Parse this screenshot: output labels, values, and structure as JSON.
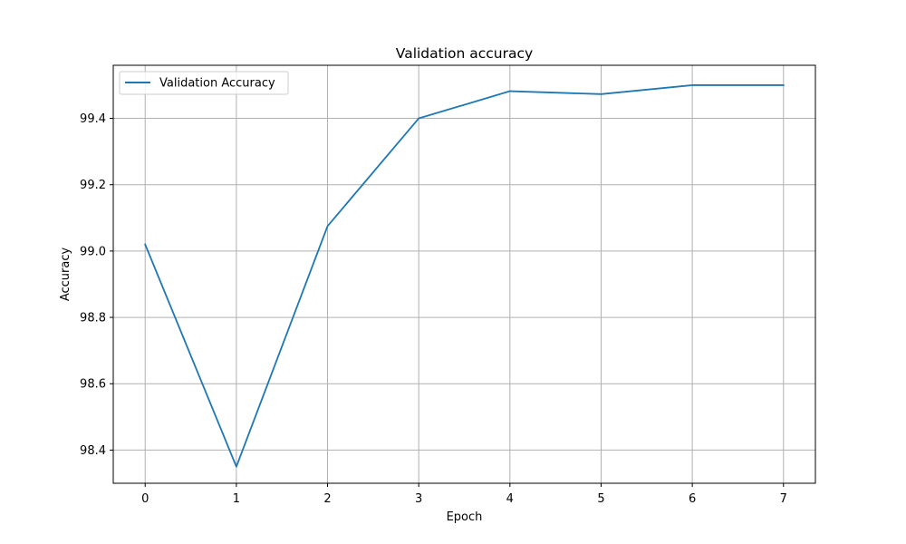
{
  "chart_data": {
    "type": "line",
    "title": "Validation accuracy",
    "xlabel": "Epoch",
    "ylabel": "Accuracy",
    "x": [
      0,
      1,
      2,
      3,
      4,
      5,
      6,
      7
    ],
    "series": [
      {
        "name": "Validation Accuracy",
        "values": [
          99.02,
          98.35,
          99.075,
          99.4,
          99.482,
          99.473,
          99.5,
          99.5
        ],
        "color": "#1f77b4"
      }
    ],
    "xlim": [
      -0.35,
      7.35
    ],
    "ylim": [
      98.3,
      99.56
    ],
    "xticks": [
      0,
      1,
      2,
      3,
      4,
      5,
      6,
      7
    ],
    "xtick_labels": [
      "0",
      "1",
      "2",
      "3",
      "4",
      "5",
      "6",
      "7"
    ],
    "yticks": [
      98.4,
      98.6,
      98.8,
      99.0,
      99.2,
      99.4
    ],
    "ytick_labels": [
      "98.4",
      "98.6",
      "98.8",
      "99.0",
      "99.2",
      "99.4"
    ],
    "grid": true,
    "grid_color": "#b0b0b0",
    "legend_position": "upper-left"
  }
}
